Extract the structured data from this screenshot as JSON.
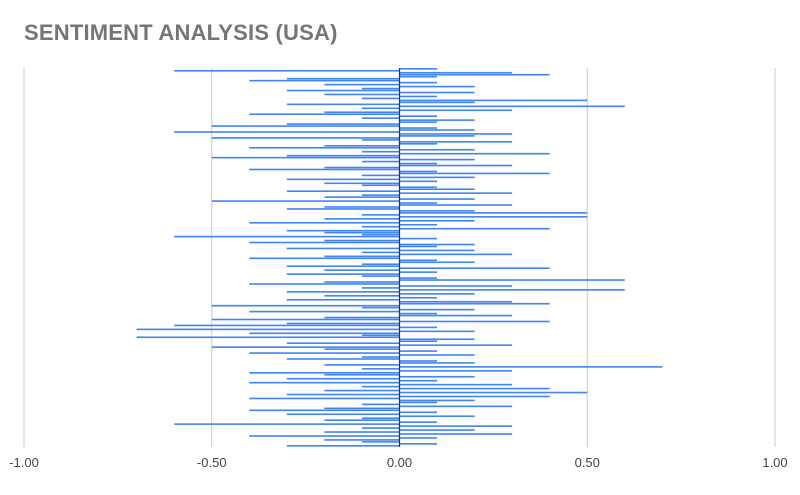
{
  "chart_data": {
    "type": "bar",
    "orientation": "horizontal",
    "title": "SENTIMENT ANALYSIS (USA)",
    "xlabel": "",
    "ylabel": "",
    "xlim": [
      -1.0,
      1.0
    ],
    "x_ticks": [
      "-1.00",
      "-0.50",
      "0.00",
      "0.50",
      "1.00"
    ],
    "x_tick_values": [
      -1.0,
      -0.5,
      0.0,
      0.5,
      1.0
    ],
    "grid": true,
    "legend": "none",
    "colors": {
      "bar": "#4285f4",
      "gridline": "#cccccc",
      "zero_line": "#333333",
      "title": "#757575"
    },
    "values": [
      0.1,
      -0.6,
      0.3,
      0.4,
      0.1,
      -0.3,
      -0.4,
      0.1,
      -0.2,
      0.2,
      -0.1,
      -0.3,
      0.2,
      -0.2,
      0.1,
      -0.1,
      0.5,
      0.2,
      -0.3,
      0.6,
      -0.1,
      0.3,
      -0.2,
      -0.4,
      0.1,
      -0.1,
      0.2,
      0.1,
      -0.3,
      -0.5,
      0.1,
      0.2,
      -0.6,
      0.3,
      0.2,
      -0.5,
      -0.1,
      0.3,
      0.1,
      -0.2,
      -0.4,
      0.2,
      -0.1,
      0.4,
      -0.3,
      -0.5,
      0.2,
      -0.1,
      0.1,
      0.3,
      -0.2,
      -0.4,
      0.1,
      0.4,
      -0.1,
      0.2,
      -0.3,
      0.1,
      -0.2,
      -0.1,
      0.1,
      0.2,
      -0.3,
      0.3,
      -0.1,
      -0.2,
      0.2,
      -0.5,
      0.1,
      0.3,
      -0.2,
      -0.3,
      0.2,
      0.5,
      -0.1,
      0.5,
      -0.2,
      0.2,
      -0.4,
      0.1,
      -0.1,
      0.4,
      -0.3,
      -0.2,
      -0.1,
      -0.6,
      0.1,
      -0.2,
      -0.4,
      0.2,
      0.1,
      -0.3,
      0.2,
      -0.1,
      0.3,
      -0.2,
      -0.4,
      0.1,
      0.2,
      -0.1,
      -0.3,
      0.4,
      -0.2,
      0.1,
      -0.3,
      -0.1,
      0.1,
      0.6,
      -0.2,
      -0.4,
      0.3,
      -0.1,
      0.6,
      -0.3,
      0.2,
      -0.2,
      0.1,
      -0.3,
      0.3,
      0.4,
      -0.5,
      -0.1,
      0.2,
      -0.4,
      0.1,
      0.3,
      -0.2,
      -0.5,
      0.4,
      -0.3,
      -0.6,
      0.1,
      -0.7,
      0.2,
      -0.4,
      -0.1,
      -0.7,
      0.2,
      0.1,
      -0.3,
      0.3,
      -0.5,
      -0.2,
      0.1,
      -0.4,
      0.2,
      -0.1,
      -0.3,
      0.1,
      0.2,
      -0.2,
      0.7,
      -0.1,
      0.3,
      -0.4,
      -0.2,
      0.2,
      -0.3,
      0.1,
      -0.4,
      0.3,
      -0.1,
      0.4,
      -0.2,
      0.5,
      -0.3,
      0.4,
      -0.4,
      0.2,
      0.1,
      -0.1,
      0.3,
      -0.2,
      -0.4,
      0.1,
      -0.3,
      0.2,
      -0.1,
      -0.2,
      0.1,
      -0.6,
      0.3,
      -0.1,
      0.2,
      -0.2,
      0.3,
      -0.4,
      0.1,
      -0.2,
      -0.1,
      0.1,
      -0.3
    ]
  }
}
